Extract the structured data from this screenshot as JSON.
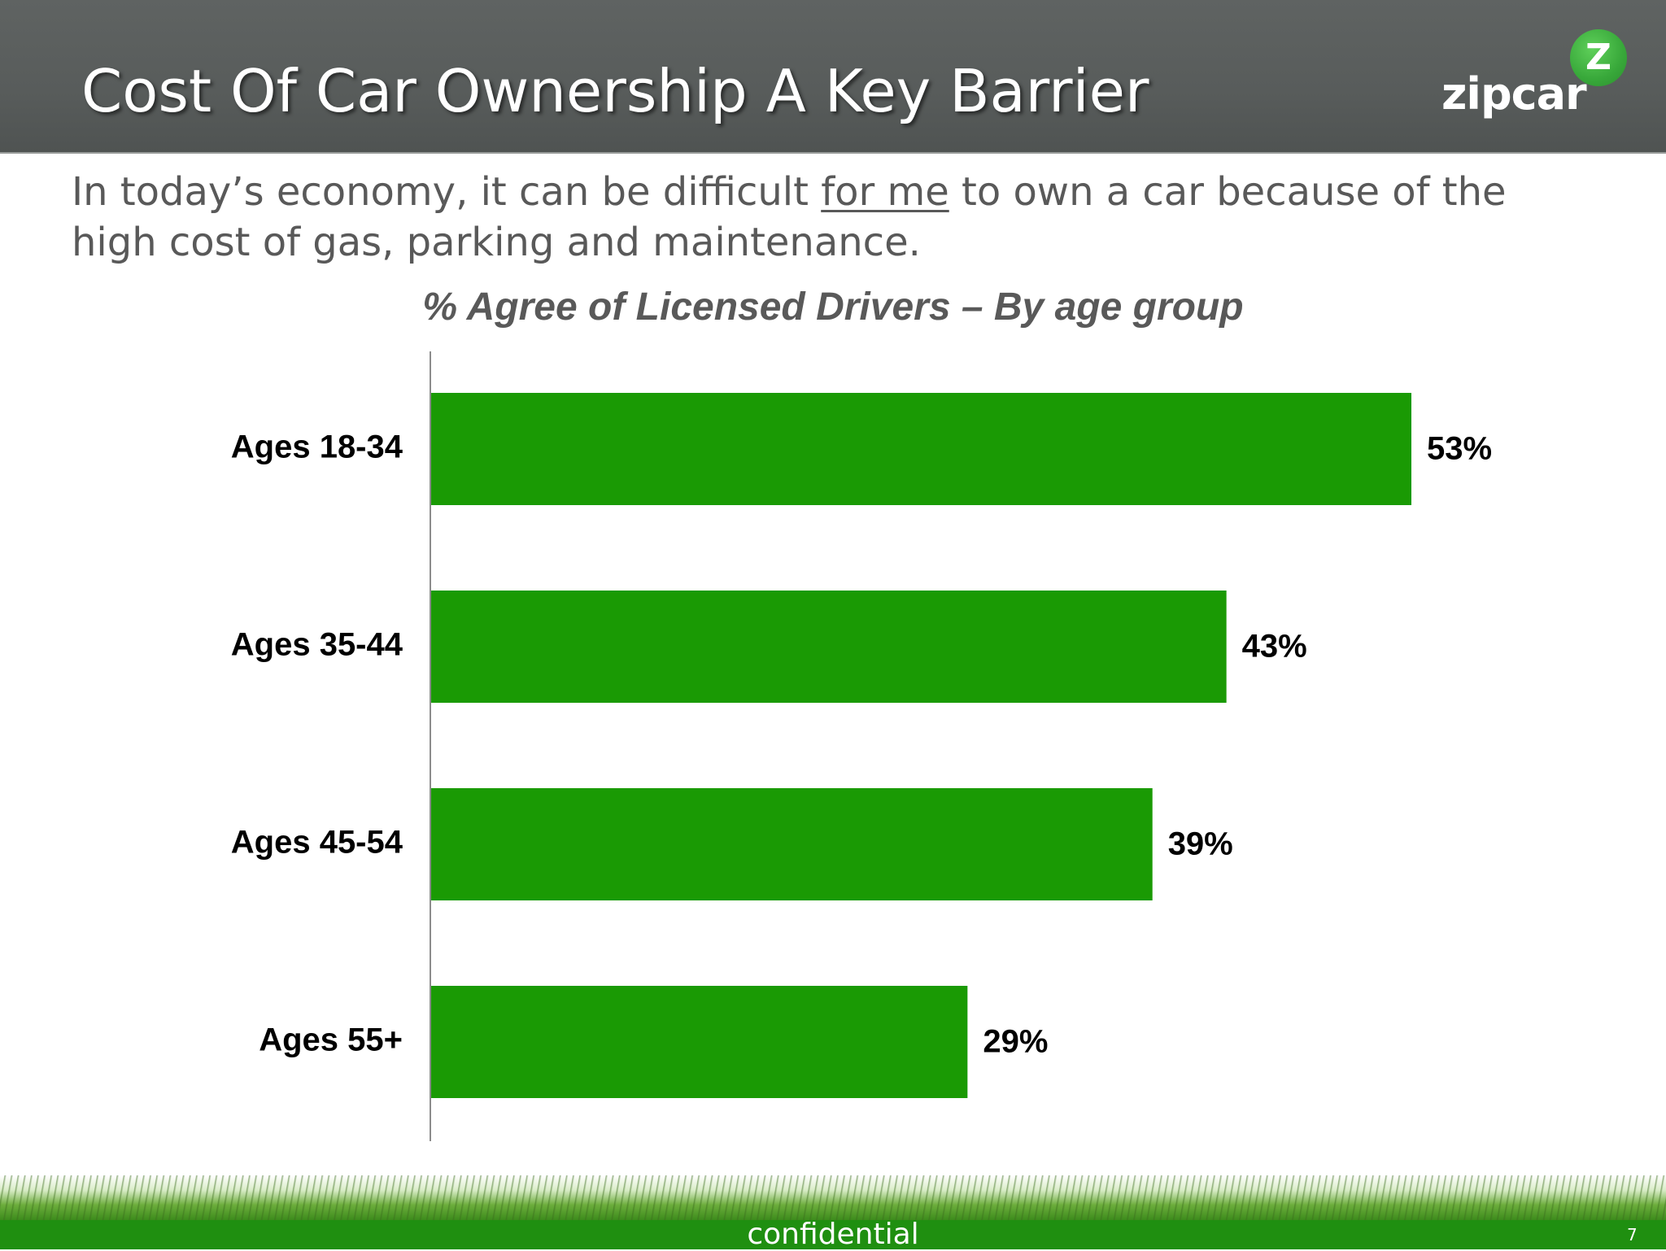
{
  "slide": {
    "title": "Cost Of Car Ownership A Key Barrier",
    "statement_before": "In today’s economy, it can be difficult ",
    "statement_underlined": "for me",
    "statement_after": " to own a car because of the high cost of gas, parking and maintenance.",
    "footer_label": "confidential",
    "page_number": "7"
  },
  "logo": {
    "mark": "Z",
    "text": "zipcar"
  },
  "colors": {
    "header": "#585c5b",
    "bar": "#1a9a04",
    "footer": "#1f8f10"
  },
  "chart_data": {
    "type": "bar",
    "orientation": "horizontal",
    "title": "% Agree of Licensed Drivers – By age group",
    "categories": [
      "Ages 18-34",
      "Ages 35-44",
      "Ages 45-54",
      "Ages 55+"
    ],
    "values": [
      53,
      43,
      39,
      29
    ],
    "value_labels": [
      "53%",
      "43%",
      "39%",
      "29%"
    ],
    "unit": "%",
    "xlim": [
      0,
      60
    ],
    "grid": false,
    "legend": "none"
  }
}
